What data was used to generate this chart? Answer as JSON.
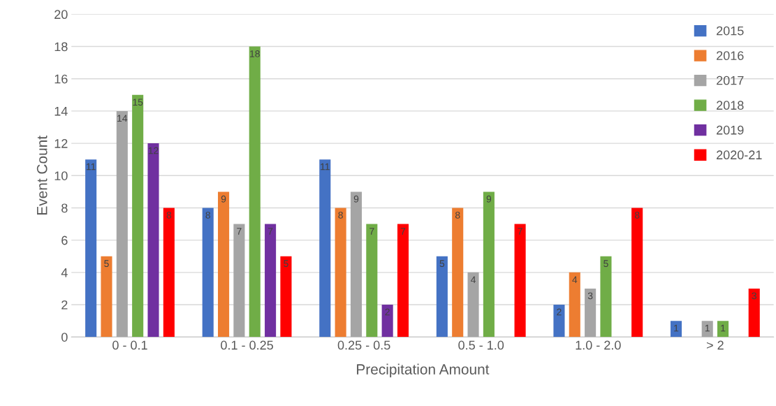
{
  "chart_data": {
    "type": "bar",
    "xlabel": "Precipitation Amount",
    "ylabel": "Event Count",
    "categories": [
      "0 - 0.1",
      "0.1 - 0.25",
      "0.25 - 0.5",
      "0.5 - 1.0",
      "1.0 - 2.0",
      "> 2"
    ],
    "series": [
      {
        "name": "2015",
        "color": "#4472c4",
        "values": [
          11,
          8,
          11,
          5,
          2,
          1
        ]
      },
      {
        "name": "2016",
        "color": "#ed7d31",
        "values": [
          5,
          9,
          8,
          8,
          4,
          null
        ]
      },
      {
        "name": "2017",
        "color": "#a5a5a5",
        "values": [
          14,
          7,
          9,
          4,
          3,
          1
        ]
      },
      {
        "name": "2018",
        "color": "#70ad47",
        "values": [
          15,
          18,
          7,
          9,
          5,
          1
        ]
      },
      {
        "name": "2019",
        "color": "#7030a0",
        "values": [
          12,
          7,
          2,
          null,
          null,
          null
        ]
      },
      {
        "name": "2020-21",
        "color": "#ff0000",
        "values": [
          8,
          5,
          7,
          7,
          8,
          3
        ]
      }
    ],
    "ylim": [
      0,
      20
    ],
    "yticks": [
      0,
      2,
      4,
      6,
      8,
      10,
      12,
      14,
      16,
      18,
      20
    ],
    "grid": "y",
    "legend": "top right",
    "data_labels": true
  }
}
